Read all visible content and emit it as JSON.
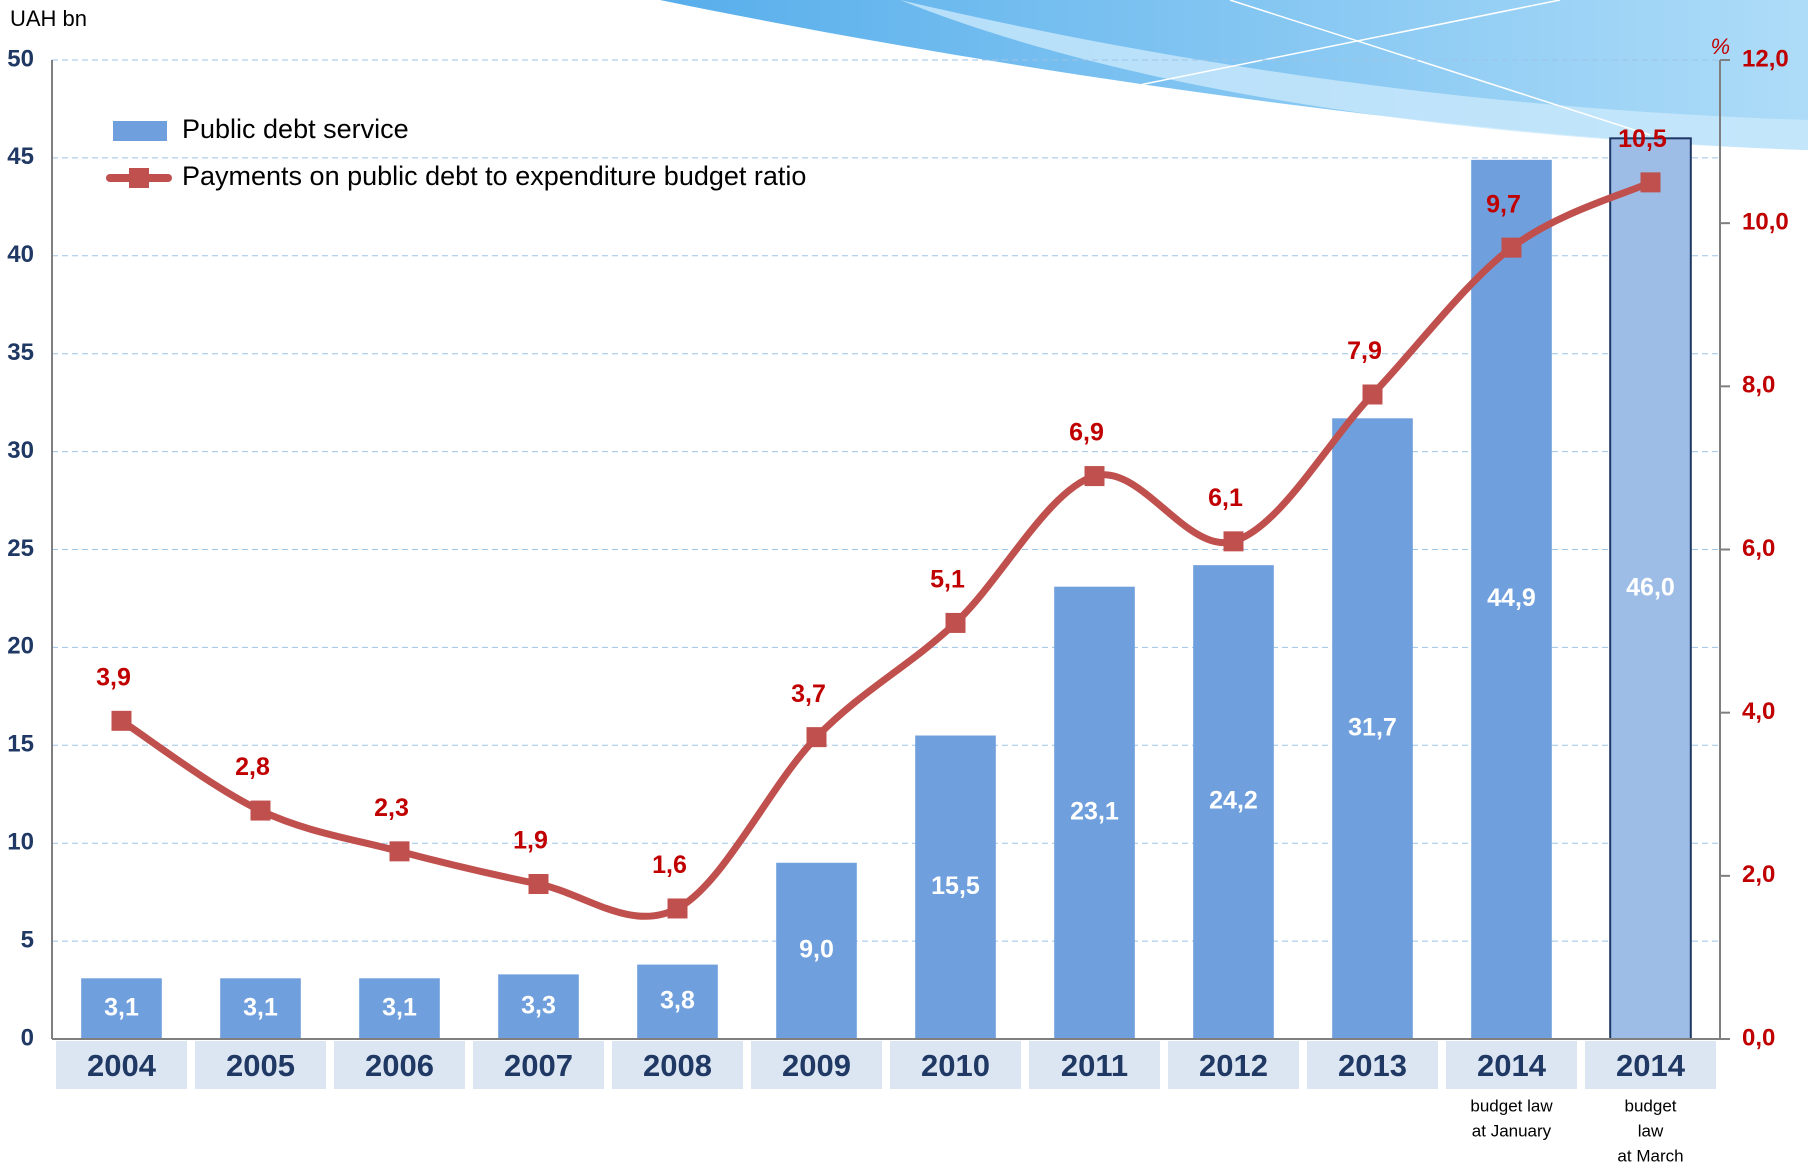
{
  "chart_data": {
    "type": "bar_line",
    "y_label": "UAH bn",
    "y2_label": "%",
    "categories": [
      "2004",
      "2005",
      "2006",
      "2007",
      "2008",
      "2009",
      "2010",
      "2011",
      "2012",
      "2013",
      "2014",
      "2014"
    ],
    "category_notes": [
      null,
      null,
      null,
      null,
      null,
      null,
      null,
      null,
      null,
      null,
      [
        "budget law",
        "at January"
      ],
      [
        "budget",
        "law",
        "at March"
      ]
    ],
    "series": [
      {
        "name": "Public debt service",
        "type": "bar",
        "color": "#6f9fdc",
        "colors": [
          "#6f9fdc",
          "#6f9fdc",
          "#6f9fdc",
          "#6f9fdc",
          "#6f9fdc",
          "#6f9fdc",
          "#6f9fdc",
          "#6f9fdc",
          "#6f9fdc",
          "#6f9fdc",
          "#6f9fdc",
          "#9dbde6"
        ],
        "values": [
          3.1,
          3.1,
          3.1,
          3.3,
          3.8,
          9.0,
          15.5,
          23.1,
          24.2,
          31.7,
          44.9,
          46.0
        ],
        "value_labels": [
          "3,1",
          "3,1",
          "3,1",
          "3,3",
          "3,8",
          "9,0",
          "15,5",
          "23,1",
          "24,2",
          "31,7",
          "44,9",
          "46,0"
        ]
      },
      {
        "name": "Payments on public debt to expenditure budget ratio",
        "type": "line",
        "axis": "y2",
        "color": "#c0504d",
        "values": [
          3.9,
          2.8,
          2.3,
          1.9,
          1.6,
          3.7,
          5.1,
          6.9,
          6.1,
          7.9,
          9.7,
          10.5
        ],
        "value_labels": [
          "3,9",
          "2,8",
          "2,3",
          "1,9",
          "1,6",
          "3,7",
          "5,1",
          "6,9",
          "6,1",
          "7,9",
          "9,7",
          "10,5"
        ]
      }
    ],
    "ylim": [
      0,
      50
    ],
    "yticks": [
      0,
      5,
      10,
      15,
      20,
      25,
      30,
      35,
      40,
      45,
      50
    ],
    "y2lim": [
      0,
      12
    ],
    "y2ticks": [
      {
        "value": 0,
        "label": "0,0"
      },
      {
        "value": 2,
        "label": "2,0"
      },
      {
        "value": 4,
        "label": "4,0"
      },
      {
        "value": 6,
        "label": "6,0"
      },
      {
        "value": 8,
        "label": "8,0"
      },
      {
        "value": 10,
        "label": "10,0"
      },
      {
        "value": 12,
        "label": "12,0"
      }
    ],
    "grid": true
  }
}
